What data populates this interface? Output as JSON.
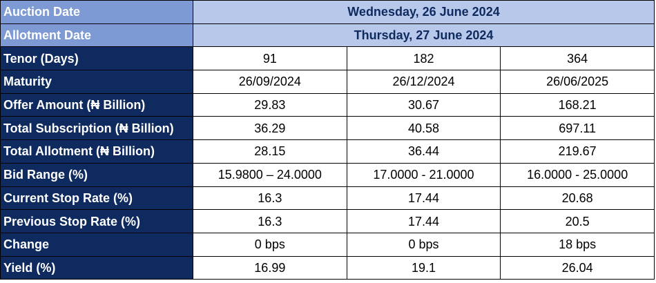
{
  "auction_date": {
    "label": "Auction Date",
    "value": "Wednesday, 26 June 2024"
  },
  "allotment_date": {
    "label": "Allotment Date",
    "value": "Thursday, 27 June 2024"
  },
  "rows": [
    {
      "label": "Tenor (Days)",
      "values": [
        "91",
        "182",
        "364"
      ]
    },
    {
      "label": "Maturity",
      "values": [
        "26/09/2024",
        "26/12/2024",
        "26/06/2025"
      ]
    },
    {
      "label": "Offer Amount (₦ Billion)",
      "values": [
        "29.83",
        "30.67",
        "168.21"
      ]
    },
    {
      "label": "Total Subscription (₦ Billion)",
      "values": [
        "36.29",
        "40.58",
        "697.11"
      ]
    },
    {
      "label": "Total Allotment (₦ Billion)",
      "values": [
        "28.15",
        "36.44",
        "219.67"
      ]
    },
    {
      "label": "Bid Range (%)",
      "values": [
        "15.9800 – 24.0000",
        "17.0000 - 21.0000",
        "16.0000 - 25.0000"
      ]
    },
    {
      "label": "Current Stop Rate (%)",
      "values": [
        "16.3",
        "17.44",
        "20.68"
      ]
    },
    {
      "label": "Previous Stop Rate (%)",
      "values": [
        "16.3",
        "17.44",
        "20.5"
      ]
    },
    {
      "label": "Change",
      "values": [
        "0 bps",
        "0 bps",
        "18 bps"
      ]
    },
    {
      "label": "Yield (%)",
      "values": [
        "16.99",
        "19.1",
        "26.04"
      ]
    }
  ],
  "colors": {
    "label_dark": "#0e2a5e",
    "label_light": "#7d9ad4",
    "date_value_bg": "#b7c8ea"
  }
}
